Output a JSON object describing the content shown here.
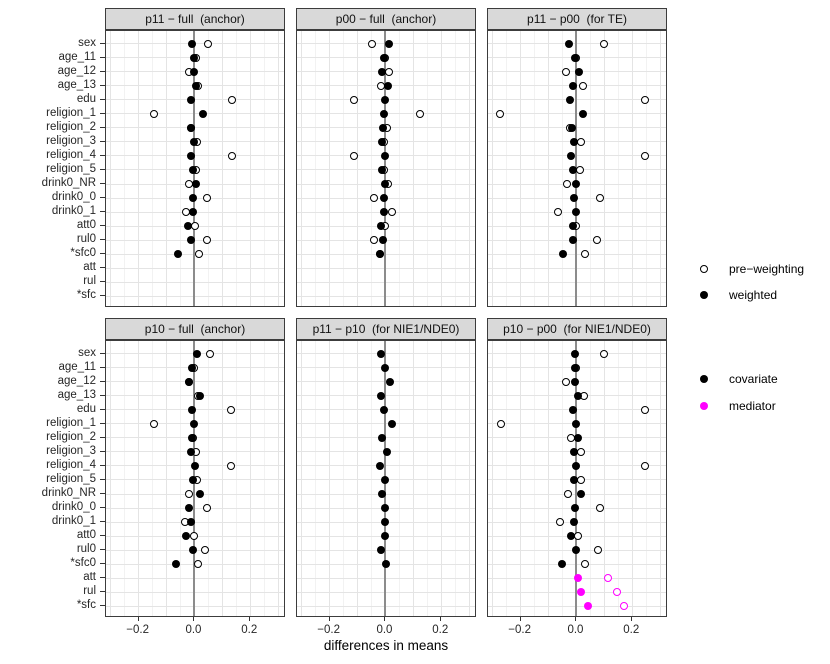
{
  "chart_data": {
    "type": "scatter",
    "title": "",
    "xlabel": "differences in means",
    "x_tick_labels": [
      "−0.2",
      "0.0",
      "0.2"
    ],
    "x_tick_values": [
      -0.2,
      0.0,
      0.2
    ],
    "xlim": [
      -0.317,
      0.328
    ],
    "grid": "on",
    "categories": [
      "sex",
      "age_11",
      "age_12",
      "age_13",
      "edu",
      "religion_1",
      "religion_2",
      "religion_3",
      "religion_4",
      "religion_5",
      "drink0_NR",
      "drink0_0",
      "drink0_1",
      "att0",
      "rul0",
      "*sfc0",
      "att",
      "rul",
      "*sfc"
    ],
    "colors": {
      "covariate": "#000000",
      "mediator": "#FF00FF"
    },
    "legend": {
      "position": "right",
      "shape_items": [
        {
          "label": "pre−weighting",
          "marker": "open"
        },
        {
          "label": "weighted",
          "marker": "filled"
        }
      ],
      "color_items": [
        {
          "label": "covariate",
          "color": "#000000"
        },
        {
          "label": "mediator",
          "color": "#FF00FF"
        }
      ]
    },
    "panels": [
      {
        "title": "p11 − full  (anchor)",
        "points": [
          {
            "c": "sex",
            "pre": 0.05,
            "wt": -0.01
          },
          {
            "c": "age_11",
            "pre": 0.004,
            "wt": -0.003
          },
          {
            "c": "age_12",
            "pre": -0.02,
            "wt": 0.0
          },
          {
            "c": "age_13",
            "pre": 0.014,
            "wt": 0.004
          },
          {
            "c": "edu",
            "pre": 0.135,
            "wt": -0.014
          },
          {
            "c": "religion_1",
            "pre": -0.145,
            "wt": 0.029
          },
          {
            "c": "religion_2",
            "pre": -0.011,
            "wt": -0.011
          },
          {
            "c": "religion_3",
            "pre": 0.009,
            "wt": 0.0
          },
          {
            "c": "religion_4",
            "pre": 0.136,
            "wt": -0.012
          },
          {
            "c": "religion_5",
            "pre": 0.005,
            "wt": -0.006
          },
          {
            "c": "drink0_NR",
            "pre": -0.018,
            "wt": 0.006
          },
          {
            "c": "drink0_0",
            "pre": 0.044,
            "wt": -0.006
          },
          {
            "c": "drink0_1",
            "pre": -0.031,
            "wt": -0.004
          },
          {
            "c": "att0",
            "pre": 0.002,
            "wt": -0.022
          },
          {
            "c": "rul0",
            "pre": 0.044,
            "wt": -0.013
          },
          {
            "c": "*sfc0",
            "pre": 0.017,
            "wt": -0.06
          }
        ]
      },
      {
        "title": "p00 − full  (anchor)",
        "points": [
          {
            "c": "sex",
            "pre": -0.048,
            "wt": 0.014
          },
          {
            "c": "age_11",
            "pre": 0.0,
            "wt": -0.004
          },
          {
            "c": "age_12",
            "pre": 0.012,
            "wt": -0.012
          },
          {
            "c": "age_13",
            "pre": -0.016,
            "wt": 0.01
          },
          {
            "c": "edu",
            "pre": -0.114,
            "wt": 0.0
          },
          {
            "c": "religion_1",
            "pre": 0.125,
            "wt": -0.004
          },
          {
            "c": "religion_2",
            "pre": 0.006,
            "wt": -0.01
          },
          {
            "c": "religion_3",
            "pre": -0.006,
            "wt": -0.012
          },
          {
            "c": "religion_4",
            "pre": -0.114,
            "wt": 0.0
          },
          {
            "c": "religion_5",
            "pre": -0.007,
            "wt": -0.012
          },
          {
            "c": "drink0_NR",
            "pre": 0.01,
            "wt": 0.0
          },
          {
            "c": "drink0_0",
            "pre": -0.042,
            "wt": -0.004
          },
          {
            "c": "drink0_1",
            "pre": 0.024,
            "wt": -0.007
          },
          {
            "c": "att0",
            "pre": 0.0,
            "wt": -0.016
          },
          {
            "c": "rul0",
            "pre": -0.042,
            "wt": -0.01
          },
          {
            "c": "*sfc0",
            "pre": -0.018,
            "wt": -0.018
          }
        ]
      },
      {
        "title": "p11 − p00  (for TE)",
        "points": [
          {
            "c": "sex",
            "pre": 0.098,
            "wt": -0.026
          },
          {
            "c": "age_11",
            "pre": 0.0,
            "wt": -0.006
          },
          {
            "c": "age_12",
            "pre": -0.036,
            "wt": 0.01
          },
          {
            "c": "age_13",
            "pre": 0.024,
            "wt": -0.012
          },
          {
            "c": "edu",
            "pre": 0.244,
            "wt": -0.024
          },
          {
            "c": "religion_1",
            "pre": -0.275,
            "wt": 0.024
          },
          {
            "c": "religion_2",
            "pre": -0.022,
            "wt": -0.016
          },
          {
            "c": "religion_3",
            "pre": 0.016,
            "wt": -0.008
          },
          {
            "c": "religion_4",
            "pre": 0.244,
            "wt": -0.019
          },
          {
            "c": "religion_5",
            "pre": 0.013,
            "wt": -0.011
          },
          {
            "c": "drink0_NR",
            "pre": -0.035,
            "wt": 0.0
          },
          {
            "c": "drink0_0",
            "pre": 0.085,
            "wt": -0.008
          },
          {
            "c": "drink0_1",
            "pre": -0.065,
            "wt": -0.002
          },
          {
            "c": "att0",
            "pre": 0.0,
            "wt": -0.014
          },
          {
            "c": "rul0",
            "pre": 0.073,
            "wt": -0.011
          },
          {
            "c": "*sfc0",
            "pre": 0.03,
            "wt": -0.05
          }
        ]
      },
      {
        "title": "p10 − full  (anchor)",
        "points": [
          {
            "c": "sex",
            "pre": 0.054,
            "wt": 0.01
          },
          {
            "c": "age_11",
            "pre": 0.0,
            "wt": -0.01
          },
          {
            "c": "age_12",
            "pre": -0.02,
            "wt": -0.02
          },
          {
            "c": "age_13",
            "pre": 0.012,
            "wt": 0.02
          },
          {
            "c": "edu",
            "pre": 0.13,
            "wt": -0.01
          },
          {
            "c": "religion_1",
            "pre": -0.146,
            "wt": 0.0
          },
          {
            "c": "religion_2",
            "pre": -0.006,
            "wt": -0.01
          },
          {
            "c": "religion_3",
            "pre": 0.006,
            "wt": -0.012
          },
          {
            "c": "religion_4",
            "pre": 0.132,
            "wt": 0.002
          },
          {
            "c": "religion_5",
            "pre": 0.008,
            "wt": -0.004
          },
          {
            "c": "drink0_NR",
            "pre": -0.018,
            "wt": 0.02
          },
          {
            "c": "drink0_0",
            "pre": 0.044,
            "wt": -0.018
          },
          {
            "c": "drink0_1",
            "pre": -0.034,
            "wt": -0.014
          },
          {
            "c": "att0",
            "pre": 0.0,
            "wt": -0.03
          },
          {
            "c": "rul0",
            "pre": 0.038,
            "wt": -0.004
          },
          {
            "c": "*sfc0",
            "pre": 0.012,
            "wt": -0.066
          }
        ]
      },
      {
        "title": "p11 − p10  (for NIE1/NDE0)",
        "points": [
          {
            "c": "sex",
            "pre": null,
            "wt": -0.017
          },
          {
            "c": "age_11",
            "pre": null,
            "wt": 0.0
          },
          {
            "c": "age_12",
            "pre": null,
            "wt": 0.016
          },
          {
            "c": "age_13",
            "pre": null,
            "wt": -0.017
          },
          {
            "c": "edu",
            "pre": null,
            "wt": -0.006
          },
          {
            "c": "religion_1",
            "pre": null,
            "wt": 0.022
          },
          {
            "c": "religion_2",
            "pre": null,
            "wt": -0.012
          },
          {
            "c": "religion_3",
            "pre": null,
            "wt": 0.004
          },
          {
            "c": "religion_4",
            "pre": null,
            "wt": -0.019
          },
          {
            "c": "religion_5",
            "pre": null,
            "wt": 0.0
          },
          {
            "c": "drink0_NR",
            "pre": null,
            "wt": -0.012
          },
          {
            "c": "drink0_0",
            "pre": null,
            "wt": 0.0
          },
          {
            "c": "drink0_1",
            "pre": null,
            "wt": 0.0
          },
          {
            "c": "att0",
            "pre": null,
            "wt": 0.0
          },
          {
            "c": "rul0",
            "pre": null,
            "wt": -0.017
          },
          {
            "c": "*sfc0",
            "pre": null,
            "wt": 0.002
          }
        ]
      },
      {
        "title": "p10 − p00  (for NIE1/NDE0)",
        "points": [
          {
            "c": "sex",
            "pre": 0.1,
            "wt": -0.006
          },
          {
            "c": "age_11",
            "pre": 0.0,
            "wt": -0.006
          },
          {
            "c": "age_12",
            "pre": -0.036,
            "wt": -0.006
          },
          {
            "c": "age_13",
            "pre": 0.028,
            "wt": 0.006
          },
          {
            "c": "edu",
            "pre": 0.246,
            "wt": -0.014
          },
          {
            "c": "religion_1",
            "pre": -0.272,
            "wt": 0.0
          },
          {
            "c": "religion_2",
            "pre": -0.02,
            "wt": 0.006
          },
          {
            "c": "religion_3",
            "pre": 0.018,
            "wt": -0.008
          },
          {
            "c": "religion_4",
            "pre": 0.246,
            "wt": 0.0
          },
          {
            "c": "religion_5",
            "pre": 0.018,
            "wt": -0.008
          },
          {
            "c": "drink0_NR",
            "pre": -0.032,
            "wt": 0.016
          },
          {
            "c": "drink0_0",
            "pre": 0.086,
            "wt": -0.006
          },
          {
            "c": "drink0_1",
            "pre": -0.06,
            "wt": -0.008
          },
          {
            "c": "att0",
            "pre": 0.006,
            "wt": -0.018
          },
          {
            "c": "rul0",
            "pre": 0.078,
            "wt": 0.0
          },
          {
            "c": "*sfc0",
            "pre": 0.03,
            "wt": -0.052
          },
          {
            "c": "att",
            "pre": 0.112,
            "wt": 0.004,
            "group": "mediator"
          },
          {
            "c": "rul",
            "pre": 0.144,
            "wt": 0.018,
            "group": "mediator"
          },
          {
            "c": "*sfc",
            "pre": 0.172,
            "wt": 0.042,
            "group": "mediator"
          }
        ]
      }
    ]
  }
}
